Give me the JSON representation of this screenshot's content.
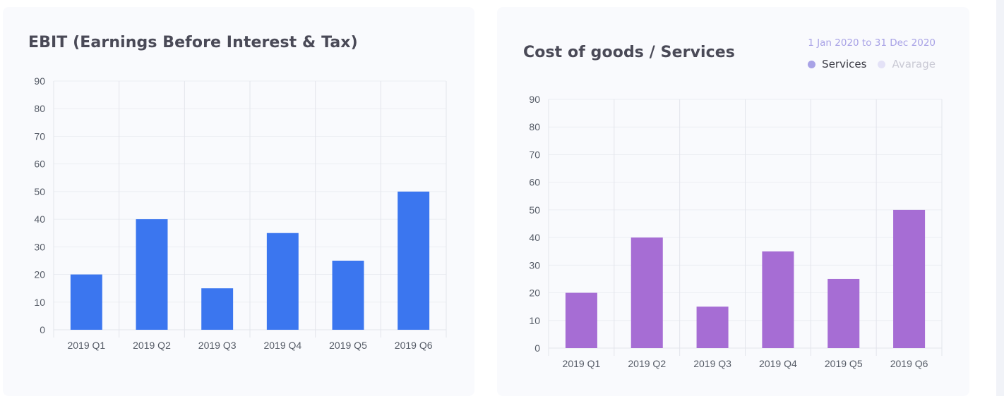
{
  "charts": [
    {
      "card_title": "EBIT (Earnings Before Interest & Tax)",
      "bar_color": "#3b76ef"
    },
    {
      "card_title": "Cost of goods / Services",
      "date_range": "1 Jan 2020 to 31 Dec 2020",
      "bar_color": "#a66dd4",
      "legend": [
        {
          "label": "Services",
          "dot_color": "#a8a2e6",
          "text_color": "#3a3a44"
        },
        {
          "label": "Avarage",
          "dot_color": "#e4e2f7",
          "text_color": "#c9c9d4"
        }
      ]
    }
  ],
  "chart_data": [
    {
      "type": "bar",
      "title": "EBIT (Earnings Before Interest & Tax)",
      "categories": [
        "2019 Q1",
        "2019 Q2",
        "2019 Q3",
        "2019 Q4",
        "2019 Q5",
        "2019 Q6"
      ],
      "values": [
        20,
        40,
        15,
        35,
        25,
        50
      ],
      "ylim": [
        0,
        90
      ],
      "yticks": [
        0,
        10,
        20,
        30,
        40,
        50,
        60,
        70,
        80,
        90
      ],
      "grid": true,
      "xlabel": "",
      "ylabel": ""
    },
    {
      "type": "bar",
      "title": "Cost of goods / Services",
      "categories": [
        "2019 Q1",
        "2019 Q2",
        "2019 Q3",
        "2019 Q4",
        "2019 Q5",
        "2019 Q6"
      ],
      "series": [
        {
          "name": "Services",
          "values": [
            20,
            40,
            15,
            35,
            25,
            50
          ]
        }
      ],
      "ylim": [
        0,
        90
      ],
      "yticks": [
        0,
        10,
        20,
        30,
        40,
        50,
        60,
        70,
        80,
        90
      ],
      "grid": true,
      "legend": "top-right",
      "xlabel": "",
      "ylabel": ""
    }
  ]
}
